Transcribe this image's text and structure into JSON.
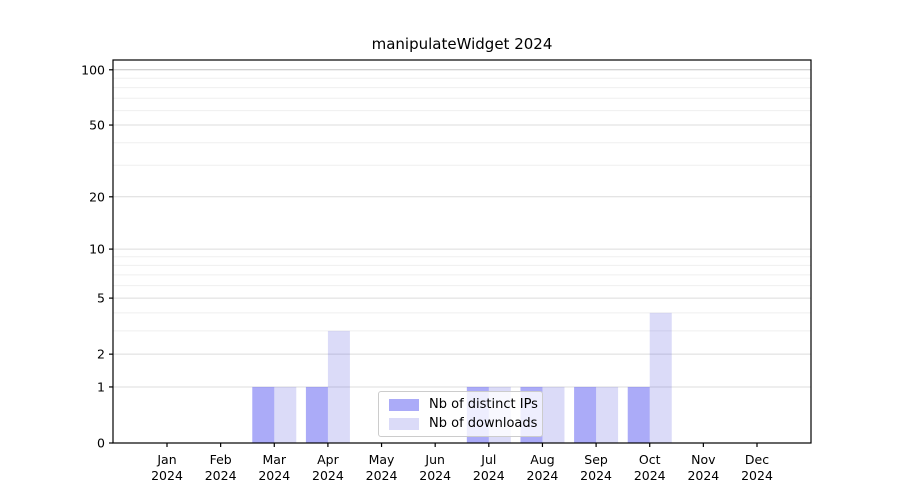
{
  "title": "manipulateWidget 2024",
  "legend": {
    "entries": [
      {
        "label": "Nb of distinct IPs",
        "color": "#ababf8"
      },
      {
        "label": "Nb of downloads",
        "color": "#dbdbf8"
      }
    ]
  },
  "chart_data": {
    "type": "bar",
    "title": "manipulateWidget 2024",
    "categories": [
      "Jan 2024",
      "Feb 2024",
      "Mar 2024",
      "Apr 2024",
      "May 2024",
      "Jun 2024",
      "Jul 2024",
      "Aug 2024",
      "Sep 2024",
      "Oct 2024",
      "Nov 2024",
      "Dec 2024"
    ],
    "series": [
      {
        "name": "Nb of distinct IPs",
        "color": "#ababf8",
        "fill": "rgba(87,87,241,0.5)",
        "values": [
          0,
          0,
          1,
          1,
          0,
          0,
          1,
          1,
          1,
          1,
          0,
          0
        ]
      },
      {
        "name": "Nb of downloads",
        "color": "#dbdbf8",
        "fill": "rgba(75,75,220,0.2)",
        "values": [
          0,
          0,
          1,
          3,
          0,
          0,
          1,
          1,
          1,
          4,
          0,
          0
        ]
      }
    ],
    "xlabel": "",
    "ylabel": "",
    "yscale": "log1p",
    "ylim": [
      0,
      113
    ],
    "y_major_ticks": [
      0,
      1,
      2,
      5,
      10,
      20,
      50,
      100
    ],
    "y_minor_ticks": [
      3,
      4,
      6,
      7,
      8,
      9,
      30,
      40,
      60,
      70,
      80,
      90
    ],
    "grid": "horizontal",
    "legend_position": "inside-bottom-center",
    "colors": {
      "axis": "#000000",
      "text": "#000000",
      "grid_major": "#dcdcdc",
      "grid_minor": "#efefef",
      "grid_top_major": "#c4c4c4"
    }
  }
}
